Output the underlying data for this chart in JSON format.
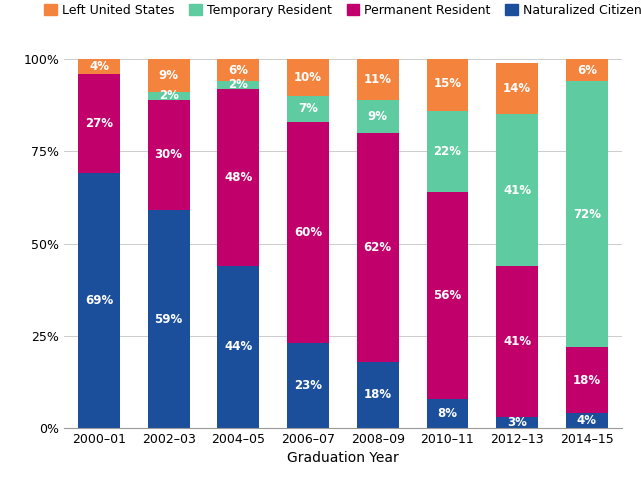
{
  "categories": [
    "2000–01",
    "2002–03",
    "2004–05",
    "2006–07",
    "2008–09",
    "2010–11",
    "2012–13",
    "2014–15"
  ],
  "series": {
    "Naturalized Citizen": [
      69,
      59,
      44,
      23,
      18,
      8,
      3,
      4
    ],
    "Permanent Resident": [
      27,
      30,
      48,
      60,
      62,
      56,
      41,
      18
    ],
    "Temporary Resident": [
      0,
      2,
      2,
      7,
      9,
      22,
      41,
      72
    ],
    "Left United States": [
      4,
      9,
      6,
      10,
      11,
      15,
      14,
      6
    ]
  },
  "colors": {
    "Naturalized Citizen": "#1b4f9c",
    "Permanent Resident": "#c2006b",
    "Temporary Resident": "#5ecba1",
    "Left United States": "#f4843d"
  },
  "order": [
    "Naturalized Citizen",
    "Permanent Resident",
    "Temporary Resident",
    "Left United States"
  ],
  "legend_order": [
    "Left United States",
    "Temporary Resident",
    "Permanent Resident",
    "Naturalized Citizen"
  ],
  "xlabel": "Graduation Year",
  "ylabel": "",
  "ylim": [
    0,
    100
  ],
  "yticks": [
    0,
    25,
    50,
    75,
    100
  ],
  "ytick_labels": [
    "0%",
    "25%",
    "50%",
    "75%",
    "100%"
  ],
  "background_color": "#ffffff",
  "bar_width": 0.6,
  "label_fontsize": 8.5,
  "xlabel_fontsize": 10,
  "tick_fontsize": 9,
  "legend_fontsize": 9
}
